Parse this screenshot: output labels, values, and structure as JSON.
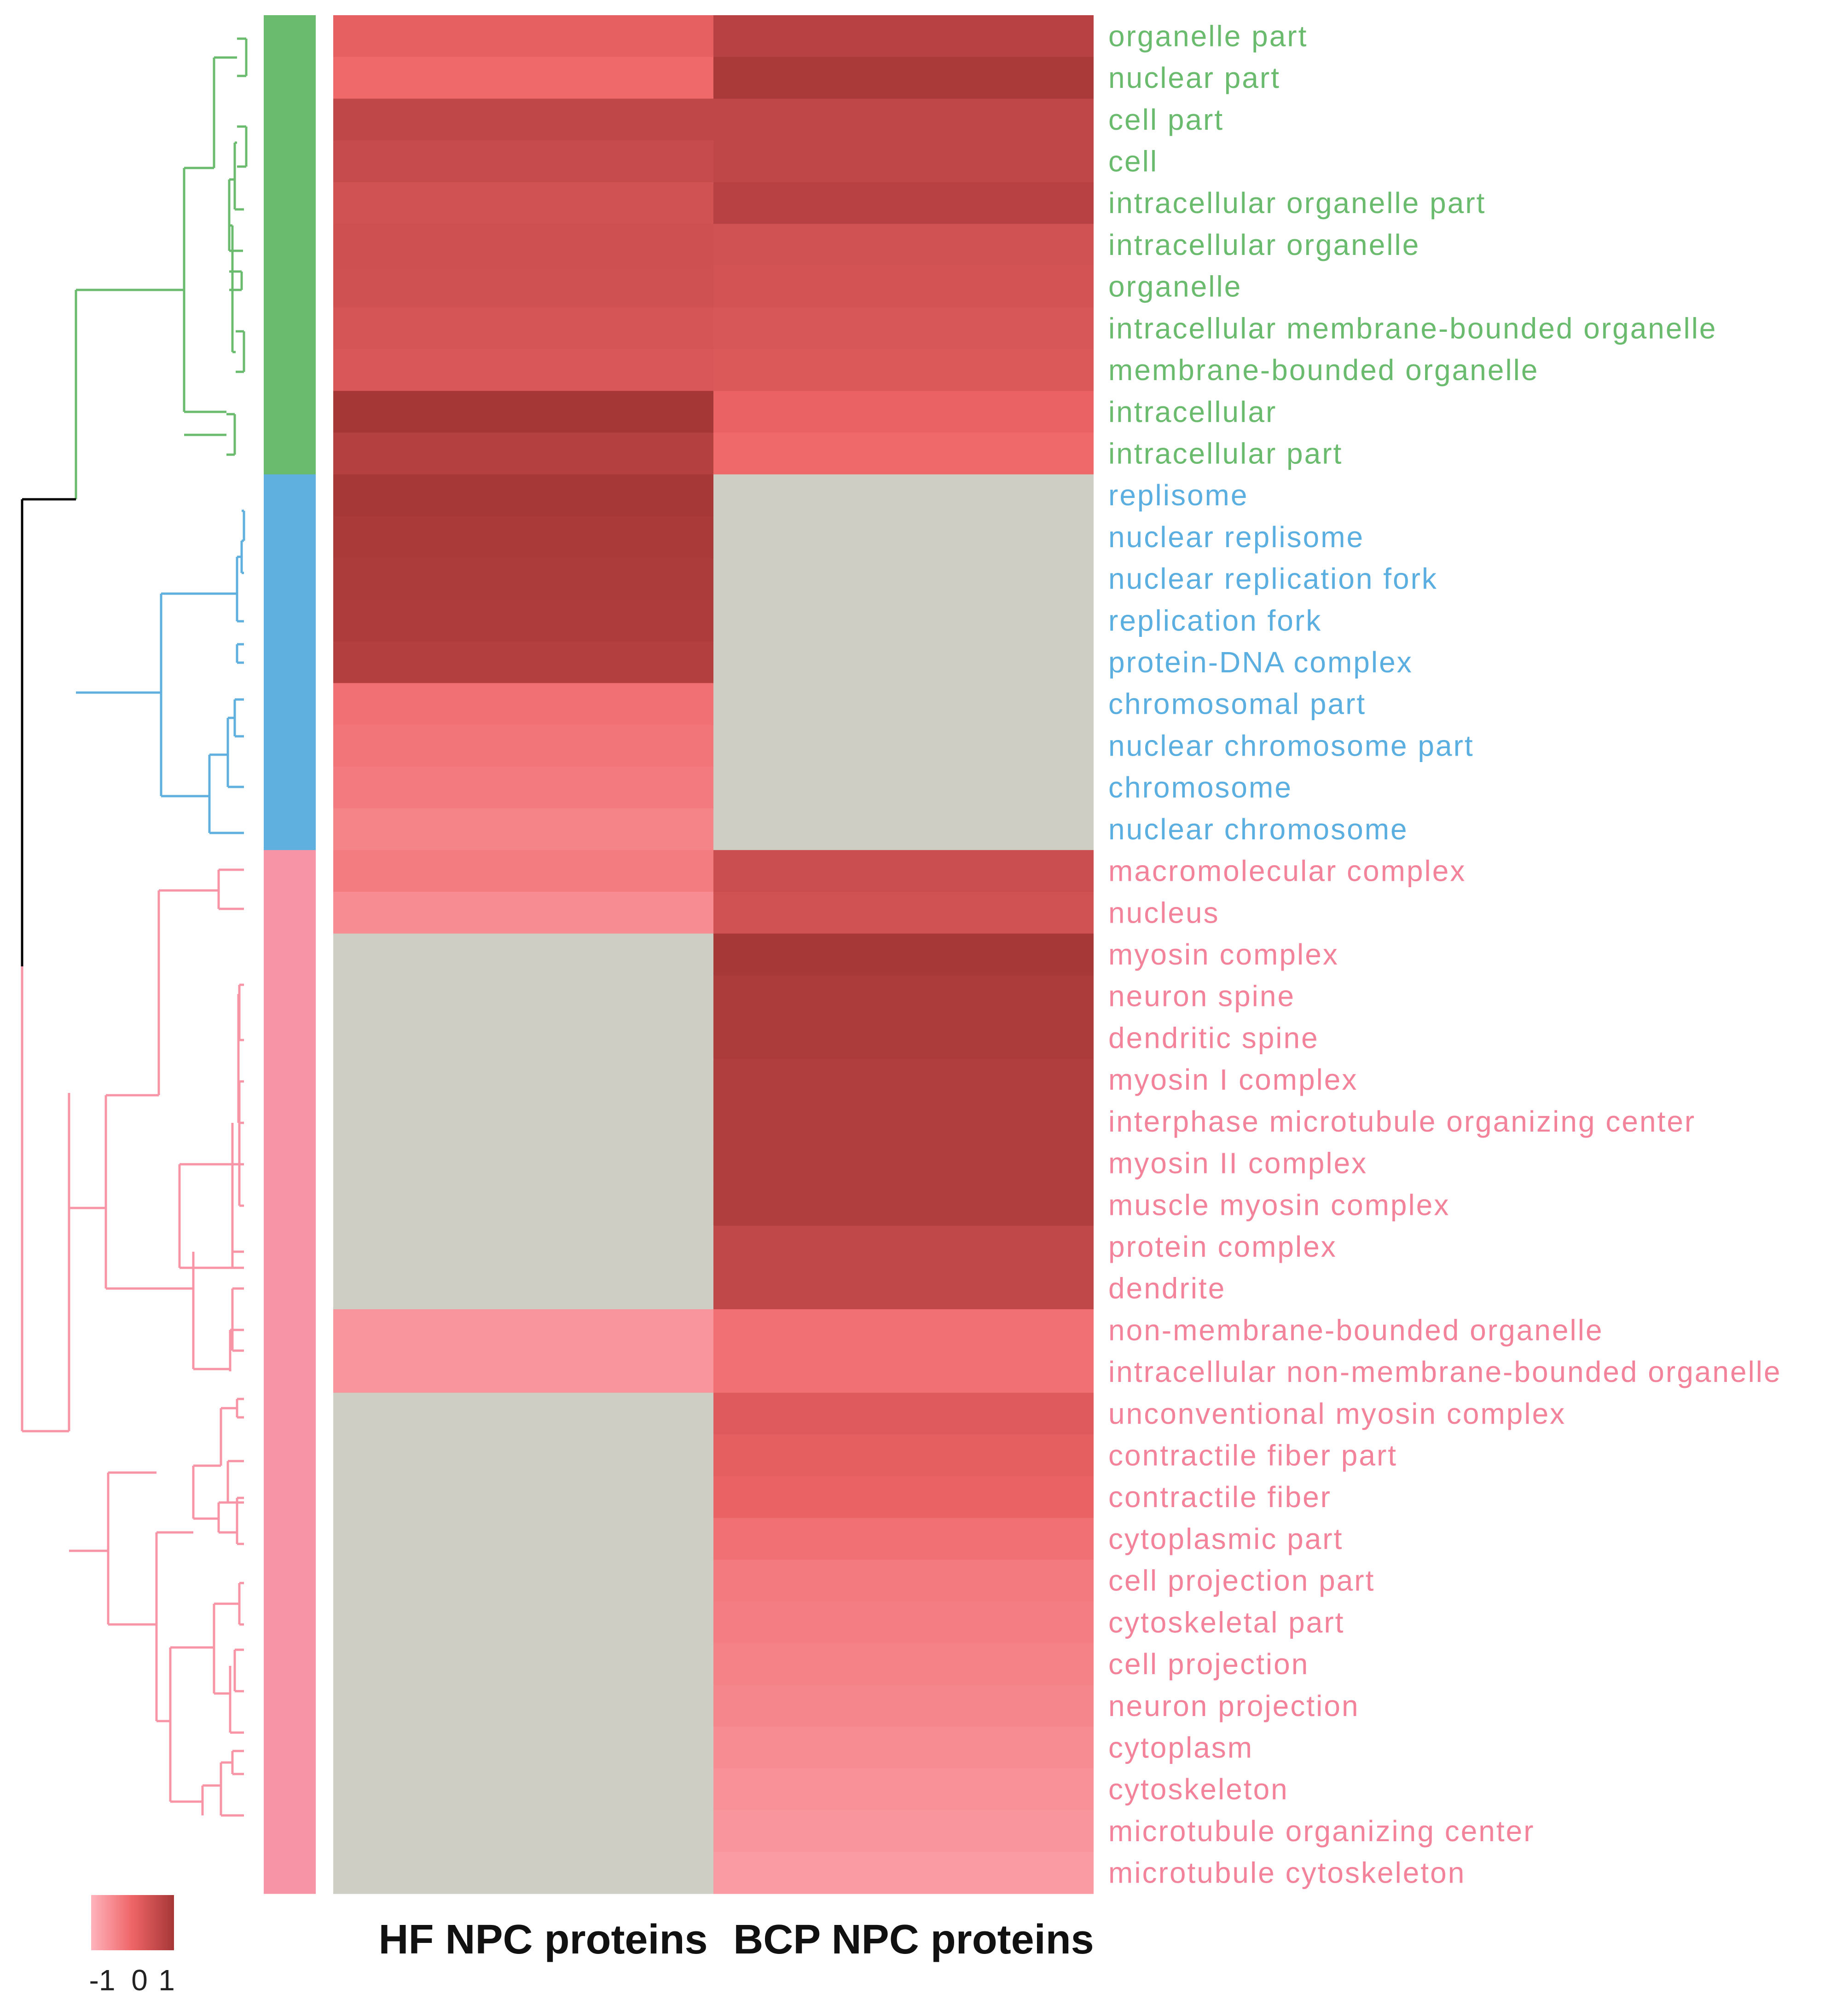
{
  "chart_data": {
    "type": "heatmap",
    "title": "",
    "columns": [
      "HF NPC proteins",
      "BCP NPC proteins"
    ],
    "rows": [
      {
        "label": "organelle part",
        "cluster": 0,
        "values": [
          0.1,
          0.75
        ]
      },
      {
        "label": "nuclear part",
        "cluster": 0,
        "values": [
          -0.05,
          0.95
        ]
      },
      {
        "label": "cell part",
        "cluster": 0,
        "values": [
          0.65,
          0.65
        ]
      },
      {
        "label": "cell",
        "cluster": 0,
        "values": [
          0.55,
          0.65
        ]
      },
      {
        "label": "intracellular organelle part",
        "cluster": 0,
        "values": [
          0.4,
          0.75
        ]
      },
      {
        "label": "intracellular organelle",
        "cluster": 0,
        "values": [
          0.45,
          0.4
        ]
      },
      {
        "label": "organelle",
        "cluster": 0,
        "values": [
          0.42,
          0.38
        ]
      },
      {
        "label": "intracellular membrane-bounded organelle",
        "cluster": 0,
        "values": [
          0.35,
          0.32
        ]
      },
      {
        "label": "membrane-bounded organelle",
        "cluster": 0,
        "values": [
          0.28,
          0.25
        ]
      },
      {
        "label": "intracellular",
        "cluster": 0,
        "values": [
          1.0,
          0.05
        ]
      },
      {
        "label": "intracellular part",
        "cluster": 0,
        "values": [
          0.8,
          -0.05
        ]
      },
      {
        "label": "replisome",
        "cluster": 1,
        "values": [
          0.98,
          null
        ]
      },
      {
        "label": "nuclear replisome",
        "cluster": 1,
        "values": [
          0.95,
          null
        ]
      },
      {
        "label": "nuclear replication fork",
        "cluster": 1,
        "values": [
          0.92,
          null
        ]
      },
      {
        "label": "replication fork",
        "cluster": 1,
        "values": [
          0.88,
          null
        ]
      },
      {
        "label": "protein-DNA complex",
        "cluster": 1,
        "values": [
          0.82,
          null
        ]
      },
      {
        "label": "chromosomal part",
        "cluster": 1,
        "values": [
          -0.15,
          null
        ]
      },
      {
        "label": "nuclear chromosome part",
        "cluster": 1,
        "values": [
          -0.22,
          null
        ]
      },
      {
        "label": "chromosome",
        "cluster": 1,
        "values": [
          -0.28,
          null
        ]
      },
      {
        "label": "nuclear chromosome",
        "cluster": 1,
        "values": [
          -0.4,
          null
        ]
      },
      {
        "label": "macromolecular complex",
        "cluster": 2,
        "values": [
          -0.3,
          0.5
        ]
      },
      {
        "label": "nucleus",
        "cluster": 2,
        "values": [
          -0.5,
          0.4
        ]
      },
      {
        "label": "myosin complex",
        "cluster": 2,
        "values": [
          null,
          0.98
        ]
      },
      {
        "label": "neuron spine",
        "cluster": 2,
        "values": [
          null,
          0.92
        ]
      },
      {
        "label": "dendritic spine",
        "cluster": 2,
        "values": [
          null,
          0.92
        ]
      },
      {
        "label": "myosin I complex",
        "cluster": 2,
        "values": [
          null,
          0.85
        ]
      },
      {
        "label": "interphase microtubule organizing center",
        "cluster": 2,
        "values": [
          null,
          0.85
        ]
      },
      {
        "label": "myosin II complex",
        "cluster": 2,
        "values": [
          null,
          0.85
        ]
      },
      {
        "label": "muscle myosin complex",
        "cluster": 2,
        "values": [
          null,
          0.85
        ]
      },
      {
        "label": "protein complex",
        "cluster": 2,
        "values": [
          null,
          0.62
        ]
      },
      {
        "label": "dendrite",
        "cluster": 2,
        "values": [
          null,
          0.62
        ]
      },
      {
        "label": "non-membrane-bounded organelle",
        "cluster": 2,
        "values": [
          -0.62,
          -0.15
        ]
      },
      {
        "label": "intracellular non-membrane-bounded organelle",
        "cluster": 2,
        "values": [
          -0.62,
          -0.15
        ]
      },
      {
        "label": "unconventional myosin complex",
        "cluster": 2,
        "values": [
          null,
          0.22
        ]
      },
      {
        "label": "contractile fiber part",
        "cluster": 2,
        "values": [
          null,
          0.12
        ]
      },
      {
        "label": "contractile fiber",
        "cluster": 2,
        "values": [
          null,
          0.05
        ]
      },
      {
        "label": "cytoplasmic part",
        "cluster": 2,
        "values": [
          null,
          -0.15
        ]
      },
      {
        "label": "cell projection part",
        "cluster": 2,
        "values": [
          null,
          -0.28
        ]
      },
      {
        "label": "cytoskeletal part",
        "cluster": 2,
        "values": [
          null,
          -0.32
        ]
      },
      {
        "label": "cell projection",
        "cluster": 2,
        "values": [
          null,
          -0.38
        ]
      },
      {
        "label": "neuron projection",
        "cluster": 2,
        "values": [
          null,
          -0.44
        ]
      },
      {
        "label": "cytoplasm",
        "cluster": 2,
        "values": [
          null,
          -0.52
        ]
      },
      {
        "label": "cytoskeleton",
        "cluster": 2,
        "values": [
          null,
          -0.58
        ]
      },
      {
        "label": "microtubule organizing center",
        "cluster": 2,
        "values": [
          null,
          -0.63
        ]
      },
      {
        "label": "microtubule cytoskeleton",
        "cluster": 2,
        "values": [
          null,
          -0.7
        ]
      }
    ],
    "clusters": [
      {
        "name": "cluster-1",
        "color": "#6bbb6f",
        "label_color": "#6bbb6f"
      },
      {
        "name": "cluster-2",
        "color": "#5fb0de",
        "label_color": "#5aaee0"
      },
      {
        "name": "cluster-3",
        "color": "#f794a6",
        "label_color": "#f3839a"
      }
    ],
    "missing_color": "#cfcec4",
    "color_scale": {
      "min": -1,
      "max": 1,
      "low_color": "#ffb3bd",
      "mid_color": "#ee6466",
      "high_color": "#a63737"
    },
    "legend": {
      "ticks": [
        "-1",
        "0",
        "1"
      ],
      "placement": "bottom-left"
    }
  }
}
